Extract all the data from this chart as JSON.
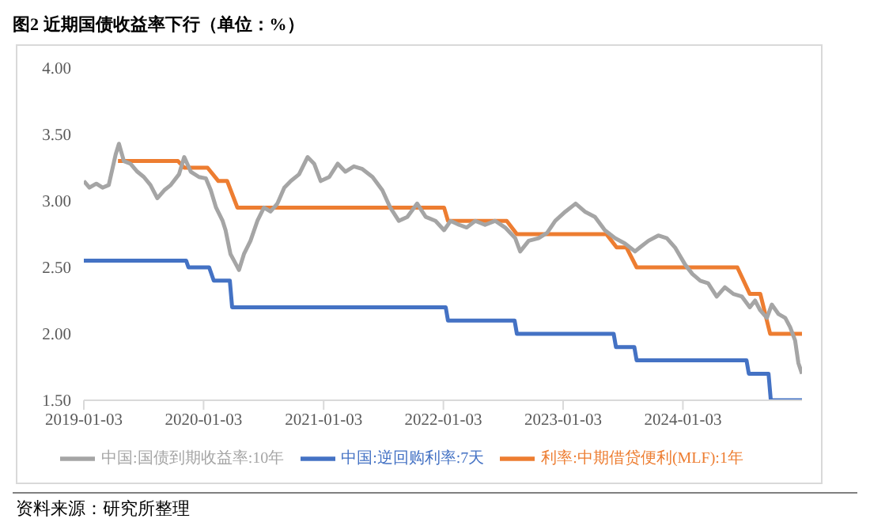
{
  "chart_data": {
    "type": "line",
    "title": "图2  近期国债收益率下行（单位：%）",
    "annotations": [
      "资料来源：研究所整理"
    ],
    "xlim": [
      "2019-01-03",
      "2024-12-31"
    ],
    "xticks": [
      "2019-01-03",
      "2020-01-03",
      "2021-01-03",
      "2022-01-03",
      "2023-01-03",
      "2024-01-03"
    ],
    "ylim": [
      1.5,
      4.0
    ],
    "yticks": [
      {
        "value": 1.5,
        "label": "1.50"
      },
      {
        "value": 2.0,
        "label": "2.00"
      },
      {
        "value": 2.5,
        "label": "2.50"
      },
      {
        "value": 3.0,
        "label": "3.00"
      },
      {
        "value": 3.5,
        "label": "3.50"
      },
      {
        "value": 4.0,
        "label": "4.00"
      }
    ],
    "grid": false,
    "legend": "bottom",
    "marker": "none",
    "line_style": "solid",
    "series": [
      {
        "name": "中国:逆回购利率:7天",
        "color": "#4472c4",
        "x": [
          "2019-01-03",
          "2019-11-11",
          "2019-11-18",
          "2020-01-20",
          "2020-02-03",
          "2020-03-23",
          "2020-03-30",
          "2022-01-10",
          "2022-01-17",
          "2022-08-08",
          "2022-08-15",
          "2023-06-06",
          "2023-06-13",
          "2023-08-08",
          "2023-08-15",
          "2024-07-15",
          "2024-07-22",
          "2024-09-20",
          "2024-09-27",
          "2024-12-31"
        ],
        "values": [
          2.55,
          2.55,
          2.5,
          2.5,
          2.4,
          2.4,
          2.2,
          2.2,
          2.1,
          2.1,
          2.0,
          2.0,
          1.9,
          1.9,
          1.8,
          1.8,
          1.7,
          1.7,
          1.5,
          1.5
        ]
      },
      {
        "name": "利率:中期借贷便利(MLF):1年",
        "color": "#ed7d31",
        "x": [
          "2019-04-17",
          "2019-10-17",
          "2019-11-05",
          "2020-01-15",
          "2020-02-17",
          "2020-03-15",
          "2020-04-15",
          "2022-01-05",
          "2022-01-17",
          "2022-07-15",
          "2022-08-15",
          "2023-05-15",
          "2023-06-15",
          "2023-07-15",
          "2023-08-15",
          "2024-06-17",
          "2024-07-25",
          "2024-08-26",
          "2024-09-25",
          "2024-12-31"
        ],
        "values": [
          3.3,
          3.3,
          3.25,
          3.25,
          3.15,
          3.15,
          2.95,
          2.95,
          2.85,
          2.85,
          2.75,
          2.75,
          2.65,
          2.65,
          2.5,
          2.5,
          2.3,
          2.3,
          2.0,
          2.0
        ]
      },
      {
        "name": "中国:国债到期收益率:10年",
        "color": "#a5a5a5",
        "x": [
          "2019-01-03",
          "2019-01-20",
          "2019-02-10",
          "2019-03-01",
          "2019-03-20",
          "2019-04-10",
          "2019-04-20",
          "2019-05-05",
          "2019-05-25",
          "2019-06-15",
          "2019-07-05",
          "2019-07-25",
          "2019-08-15",
          "2019-09-05",
          "2019-09-25",
          "2019-10-20",
          "2019-11-05",
          "2019-11-25",
          "2019-12-20",
          "2020-01-10",
          "2020-01-25",
          "2020-02-10",
          "2020-03-01",
          "2020-03-10",
          "2020-03-25",
          "2020-04-05",
          "2020-04-20",
          "2020-05-05",
          "2020-05-25",
          "2020-06-15",
          "2020-07-05",
          "2020-07-25",
          "2020-08-15",
          "2020-09-05",
          "2020-09-25",
          "2020-10-20",
          "2020-11-15",
          "2020-12-05",
          "2020-12-25",
          "2021-01-20",
          "2021-02-15",
          "2021-03-10",
          "2021-04-05",
          "2021-05-01",
          "2021-06-01",
          "2021-07-01",
          "2021-07-25",
          "2021-08-20",
          "2021-09-15",
          "2021-10-15",
          "2021-11-10",
          "2021-12-10",
          "2022-01-05",
          "2022-01-25",
          "2022-02-20",
          "2022-03-15",
          "2022-04-10",
          "2022-05-10",
          "2022-06-10",
          "2022-07-10",
          "2022-08-10",
          "2022-08-25",
          "2022-09-20",
          "2022-10-20",
          "2022-11-15",
          "2022-12-10",
          "2023-01-10",
          "2023-02-10",
          "2023-03-10",
          "2023-04-10",
          "2023-05-10",
          "2023-06-10",
          "2023-07-10",
          "2023-08-10",
          "2023-08-25",
          "2023-09-20",
          "2023-10-20",
          "2023-11-15",
          "2023-12-10",
          "2024-01-10",
          "2024-02-01",
          "2024-02-25",
          "2024-03-20",
          "2024-04-15",
          "2024-05-10",
          "2024-06-05",
          "2024-07-01",
          "2024-07-25",
          "2024-08-10",
          "2024-08-25",
          "2024-09-15",
          "2024-09-30",
          "2024-10-20",
          "2024-11-10",
          "2024-11-25",
          "2024-12-10",
          "2024-12-20",
          "2024-12-31"
        ],
        "values": [
          3.15,
          3.1,
          3.13,
          3.1,
          3.12,
          3.35,
          3.43,
          3.3,
          3.28,
          3.22,
          3.18,
          3.12,
          3.02,
          3.08,
          3.12,
          3.2,
          3.33,
          3.22,
          3.18,
          3.17,
          3.08,
          2.95,
          2.85,
          2.78,
          2.6,
          2.55,
          2.48,
          2.6,
          2.7,
          2.85,
          2.95,
          2.92,
          2.98,
          3.1,
          3.15,
          3.2,
          3.33,
          3.28,
          3.15,
          3.18,
          3.28,
          3.22,
          3.26,
          3.24,
          3.18,
          3.08,
          2.95,
          2.85,
          2.88,
          2.98,
          2.88,
          2.85,
          2.78,
          2.85,
          2.82,
          2.8,
          2.85,
          2.82,
          2.85,
          2.8,
          2.72,
          2.62,
          2.7,
          2.72,
          2.76,
          2.85,
          2.92,
          2.98,
          2.92,
          2.88,
          2.78,
          2.72,
          2.68,
          2.62,
          2.65,
          2.7,
          2.74,
          2.72,
          2.65,
          2.52,
          2.45,
          2.4,
          2.38,
          2.28,
          2.35,
          2.3,
          2.28,
          2.2,
          2.25,
          2.18,
          2.12,
          2.22,
          2.15,
          2.12,
          2.05,
          1.95,
          1.78,
          1.7
        ]
      }
    ]
  }
}
